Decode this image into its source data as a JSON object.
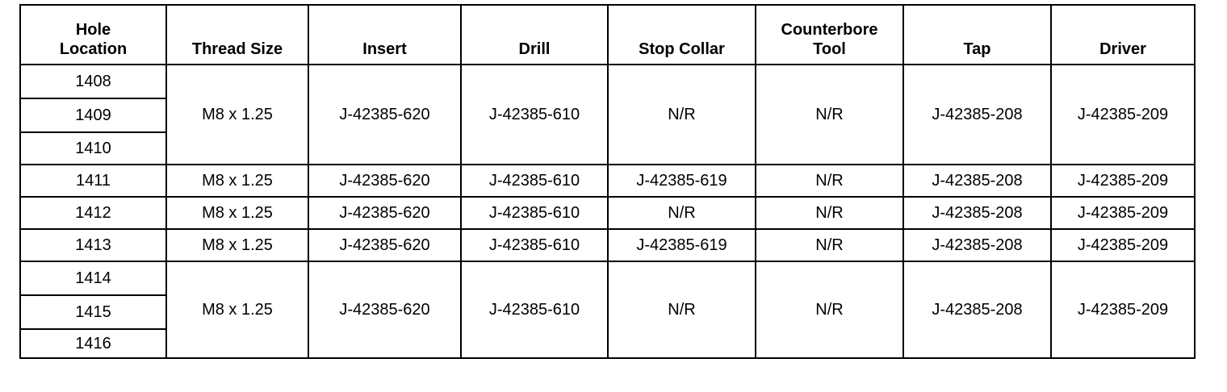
{
  "headers": [
    "Hole\nLocation",
    "Thread Size",
    "Insert",
    "Drill",
    "Stop Collar",
    "Counterbore\nTool",
    "Tap",
    "Driver"
  ],
  "groups": [
    {
      "holes": [
        "1408",
        "1409",
        "1410"
      ],
      "thread": "M8 x 1.25",
      "insert": "J-42385-620",
      "drill": "J-42385-610",
      "stop_collar": "N/R",
      "counterbore": "N/R",
      "tap": "J-42385-208",
      "driver": "J-42385-209"
    },
    {
      "holes": [
        "1411"
      ],
      "thread": "M8 x 1.25",
      "insert": "J-42385-620",
      "drill": "J-42385-610",
      "stop_collar": "J-42385-619",
      "counterbore": "N/R",
      "tap": "J-42385-208",
      "driver": "J-42385-209"
    },
    {
      "holes": [
        "1412"
      ],
      "thread": "M8 x 1.25",
      "insert": "J-42385-620",
      "drill": "J-42385-610",
      "stop_collar": "N/R",
      "counterbore": "N/R",
      "tap": "J-42385-208",
      "driver": "J-42385-209"
    },
    {
      "holes": [
        "1413"
      ],
      "thread": "M8 x 1.25",
      "insert": "J-42385-620",
      "drill": "J-42385-610",
      "stop_collar": "J-42385-619",
      "counterbore": "N/R",
      "tap": "J-42385-208",
      "driver": "J-42385-209"
    },
    {
      "holes": [
        "1414",
        "1415",
        "1416"
      ],
      "thread": "M8 x 1.25",
      "insert": "J-42385-620",
      "drill": "J-42385-610",
      "stop_collar": "N/R",
      "counterbore": "N/R",
      "tap": "J-42385-208",
      "driver": "J-42385-209"
    }
  ]
}
